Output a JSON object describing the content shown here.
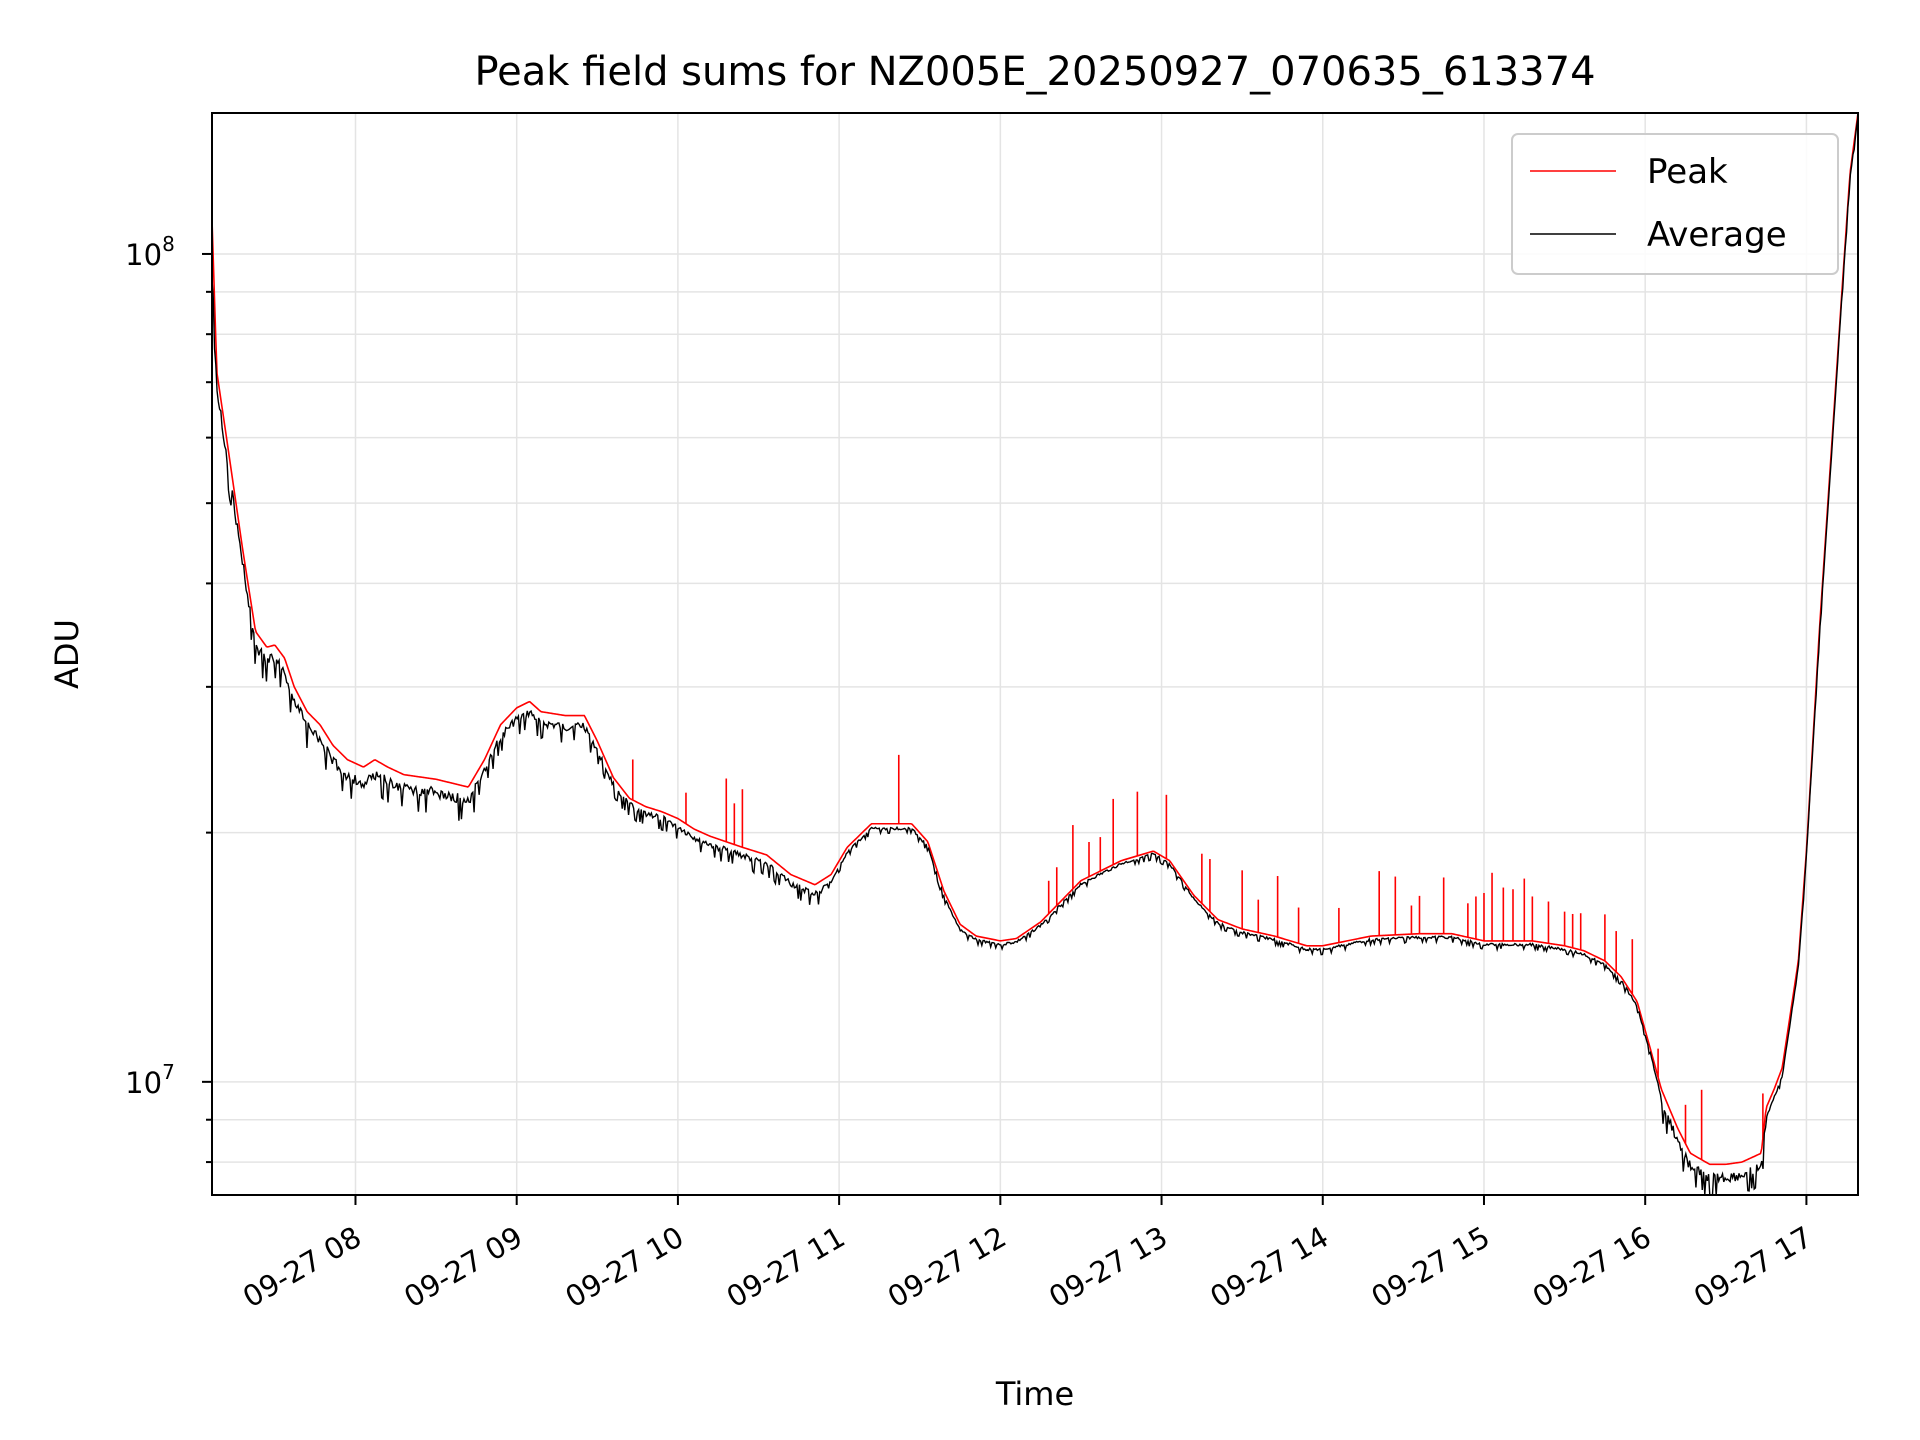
{
  "chart_data": {
    "type": "line",
    "title": "Peak field sums for NZ005E_20250927_070635_613374",
    "xlabel": "Time",
    "ylabel": "ADU",
    "yscale": "log",
    "ylim": [
      7300000,
      148000000
    ],
    "xlim_hours": [
      7.11,
      17.32
    ],
    "grid": true,
    "legend_position": "top-right",
    "x_ticks": [
      {
        "hour": 8,
        "label": "09-27 08"
      },
      {
        "hour": 9,
        "label": "09-27 09"
      },
      {
        "hour": 10,
        "label": "09-27 10"
      },
      {
        "hour": 11,
        "label": "09-27 11"
      },
      {
        "hour": 12,
        "label": "09-27 12"
      },
      {
        "hour": 13,
        "label": "09-27 13"
      },
      {
        "hour": 14,
        "label": "09-27 14"
      },
      {
        "hour": 15,
        "label": "09-27 15"
      },
      {
        "hour": 16,
        "label": "09-27 16"
      },
      {
        "hour": 17,
        "label": "09-27 17"
      }
    ],
    "y_major_ticks": [
      {
        "value": 10000000,
        "base": "10",
        "exp": "7"
      },
      {
        "value": 100000000,
        "base": "10",
        "exp": "8"
      }
    ],
    "series": [
      {
        "name": "Peak",
        "color": "#ff0000",
        "spike_hours": [
          9.72,
          10.05,
          10.3,
          10.35,
          10.4,
          11.37,
          12.3,
          12.35,
          12.45,
          12.55,
          12.62,
          12.7,
          12.85,
          13.03,
          13.25,
          13.3,
          13.5,
          13.6,
          13.72,
          13.85,
          14.1,
          14.35,
          14.45,
          14.55,
          14.6,
          14.75,
          14.9,
          14.95,
          15.0,
          15.05,
          15.12,
          15.18,
          15.25,
          15.3,
          15.4,
          15.5,
          15.55,
          15.6,
          15.75,
          15.82,
          15.92,
          16.08,
          16.25,
          16.35,
          16.73
        ],
        "points": [
          [
            7.11,
            110000000
          ],
          [
            7.14,
            72000000
          ],
          [
            7.2,
            60000000
          ],
          [
            7.3,
            44000000
          ],
          [
            7.38,
            35000000
          ],
          [
            7.45,
            33500000
          ],
          [
            7.5,
            33700000
          ],
          [
            7.56,
            32500000
          ],
          [
            7.62,
            30000000
          ],
          [
            7.7,
            28000000
          ],
          [
            7.78,
            27000000
          ],
          [
            7.86,
            25500000
          ],
          [
            7.95,
            24500000
          ],
          [
            8.05,
            24000000
          ],
          [
            8.12,
            24500000
          ],
          [
            8.2,
            24000000
          ],
          [
            8.3,
            23500000
          ],
          [
            8.5,
            23200000
          ],
          [
            8.7,
            22700000
          ],
          [
            8.8,
            24500000
          ],
          [
            8.9,
            27000000
          ],
          [
            9.0,
            28300000
          ],
          [
            9.08,
            28800000
          ],
          [
            9.15,
            28000000
          ],
          [
            9.3,
            27700000
          ],
          [
            9.42,
            27700000
          ],
          [
            9.5,
            25800000
          ],
          [
            9.6,
            23300000
          ],
          [
            9.7,
            22000000
          ],
          [
            9.8,
            21500000
          ],
          [
            9.9,
            21200000
          ],
          [
            10.0,
            20800000
          ],
          [
            10.1,
            20200000
          ],
          [
            10.2,
            19800000
          ],
          [
            10.4,
            19200000
          ],
          [
            10.55,
            18800000
          ],
          [
            10.7,
            17800000
          ],
          [
            10.85,
            17300000
          ],
          [
            10.95,
            17800000
          ],
          [
            11.05,
            19200000
          ],
          [
            11.2,
            20500000
          ],
          [
            11.3,
            20500000
          ],
          [
            11.45,
            20500000
          ],
          [
            11.55,
            19500000
          ],
          [
            11.65,
            17000000
          ],
          [
            11.75,
            15500000
          ],
          [
            11.85,
            15000000
          ],
          [
            12.0,
            14800000
          ],
          [
            12.1,
            14900000
          ],
          [
            12.25,
            15600000
          ],
          [
            12.5,
            17500000
          ],
          [
            12.75,
            18500000
          ],
          [
            12.95,
            19000000
          ],
          [
            13.05,
            18500000
          ],
          [
            13.2,
            16800000
          ],
          [
            13.35,
            15700000
          ],
          [
            13.5,
            15300000
          ],
          [
            13.7,
            15000000
          ],
          [
            13.9,
            14600000
          ],
          [
            14.0,
            14600000
          ],
          [
            14.3,
            15000000
          ],
          [
            14.6,
            15100000
          ],
          [
            14.8,
            15100000
          ],
          [
            15.0,
            14800000
          ],
          [
            15.3,
            14800000
          ],
          [
            15.5,
            14600000
          ],
          [
            15.62,
            14400000
          ],
          [
            15.75,
            14000000
          ],
          [
            15.85,
            13400000
          ],
          [
            15.95,
            12500000
          ],
          [
            16.03,
            11000000
          ],
          [
            16.1,
            9800000
          ],
          [
            16.2,
            8800000
          ],
          [
            16.28,
            8200000
          ],
          [
            16.4,
            7950000
          ],
          [
            16.5,
            7950000
          ],
          [
            16.6,
            8000000
          ],
          [
            16.72,
            8200000
          ],
          [
            16.75,
            9300000
          ],
          [
            16.8,
            9800000
          ],
          [
            16.85,
            10400000
          ],
          [
            16.95,
            14000000
          ],
          [
            17.0,
            19000000
          ],
          [
            17.08,
            35000000
          ],
          [
            17.16,
            60000000
          ],
          [
            17.22,
            90000000
          ],
          [
            17.27,
            125000000
          ],
          [
            17.32,
            148000000
          ]
        ]
      },
      {
        "name": "Average",
        "color": "#000000",
        "points": [
          [
            7.11,
            100000000
          ],
          [
            7.14,
            70000000
          ],
          [
            7.2,
            58000000
          ],
          [
            7.3,
            43000000
          ],
          [
            7.38,
            34000000
          ],
          [
            7.45,
            32800000
          ],
          [
            7.5,
            33000000
          ],
          [
            7.56,
            31800000
          ],
          [
            7.62,
            29300000
          ],
          [
            7.7,
            27300000
          ],
          [
            7.78,
            26300000
          ],
          [
            7.86,
            24800000
          ],
          [
            7.95,
            23800000
          ],
          [
            8.05,
            23300000
          ],
          [
            8.12,
            23800000
          ],
          [
            8.2,
            23400000
          ],
          [
            8.3,
            23000000
          ],
          [
            8.5,
            22700000
          ],
          [
            8.7,
            22200000
          ],
          [
            8.8,
            24000000
          ],
          [
            8.9,
            26400000
          ],
          [
            9.0,
            27700000
          ],
          [
            9.08,
            28200000
          ],
          [
            9.15,
            27400000
          ],
          [
            9.3,
            27100000
          ],
          [
            9.42,
            27200000
          ],
          [
            9.5,
            25400000
          ],
          [
            9.6,
            23000000
          ],
          [
            9.7,
            21800000
          ],
          [
            9.8,
            21300000
          ],
          [
            9.9,
            21000000
          ],
          [
            10.0,
            20500000
          ],
          [
            10.1,
            19900000
          ],
          [
            10.2,
            19500000
          ],
          [
            10.4,
            18900000
          ],
          [
            10.55,
            18500000
          ],
          [
            10.7,
            17500000
          ],
          [
            10.85,
            17000000
          ],
          [
            10.95,
            17500000
          ],
          [
            11.05,
            19000000
          ],
          [
            11.2,
            20300000
          ],
          [
            11.3,
            20300000
          ],
          [
            11.45,
            20300000
          ],
          [
            11.55,
            19300000
          ],
          [
            11.65,
            16800000
          ],
          [
            11.75,
            15300000
          ],
          [
            11.85,
            14900000
          ],
          [
            12.0,
            14700000
          ],
          [
            12.1,
            14800000
          ],
          [
            12.25,
            15500000
          ],
          [
            12.5,
            17400000
          ],
          [
            12.75,
            18400000
          ],
          [
            12.95,
            18900000
          ],
          [
            13.05,
            18400000
          ],
          [
            13.2,
            16700000
          ],
          [
            13.35,
            15600000
          ],
          [
            13.5,
            15200000
          ],
          [
            13.7,
            14900000
          ],
          [
            13.9,
            14500000
          ],
          [
            14.0,
            14500000
          ],
          [
            14.3,
            14900000
          ],
          [
            14.6,
            15000000
          ],
          [
            14.8,
            15000000
          ],
          [
            15.0,
            14700000
          ],
          [
            15.3,
            14700000
          ],
          [
            15.5,
            14500000
          ],
          [
            15.62,
            14300000
          ],
          [
            15.75,
            13900000
          ],
          [
            15.85,
            13300000
          ],
          [
            15.95,
            12400000
          ],
          [
            16.03,
            10900000
          ],
          [
            16.1,
            9600000
          ],
          [
            16.2,
            8600000
          ],
          [
            16.28,
            8000000
          ],
          [
            16.4,
            7750000
          ],
          [
            16.5,
            7750000
          ],
          [
            16.6,
            7800000
          ],
          [
            16.72,
            8000000
          ],
          [
            16.75,
            9100000
          ],
          [
            16.8,
            9600000
          ],
          [
            16.85,
            10200000
          ],
          [
            16.95,
            13800000
          ],
          [
            17.0,
            18800000
          ],
          [
            17.08,
            34500000
          ],
          [
            17.16,
            59000000
          ],
          [
            17.22,
            89000000
          ],
          [
            17.27,
            124000000
          ],
          [
            17.32,
            147000000
          ]
        ]
      }
    ]
  }
}
